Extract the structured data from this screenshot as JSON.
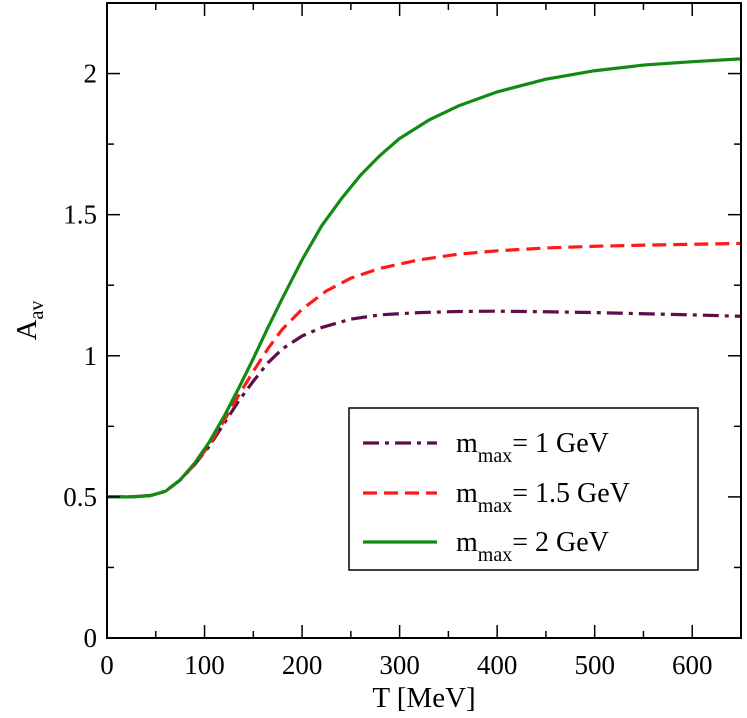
{
  "chart_data": {
    "type": "line",
    "title": "",
    "xlabel": "T [MeV]",
    "ylabel_main": "A",
    "ylabel_sub": "av",
    "xlim": [
      0,
      650
    ],
    "ylim": [
      0,
      2.25
    ],
    "x_ticks": [
      0,
      100,
      200,
      300,
      400,
      500,
      600
    ],
    "x_tick_labels": [
      "0",
      "100",
      "200",
      "300",
      "400",
      "500",
      "600"
    ],
    "y_ticks": [
      0,
      0.5,
      1,
      1.5,
      2
    ],
    "y_tick_labels": [
      "0",
      "0.5",
      "1",
      "1.5",
      "2"
    ],
    "grid": false,
    "legend_position": "lower-right",
    "series": [
      {
        "name": "m_max = 1 GeV",
        "label_main": "m",
        "label_sub": "max",
        "label_value": "= 1 GeV",
        "color": "#5c0f4a",
        "style": "dashdot",
        "points": [
          [
            0,
            0.5
          ],
          [
            25,
            0.5
          ],
          [
            45,
            0.505
          ],
          [
            60,
            0.52
          ],
          [
            75,
            0.56
          ],
          [
            90,
            0.615
          ],
          [
            105,
            0.68
          ],
          [
            120,
            0.76
          ],
          [
            135,
            0.84
          ],
          [
            150,
            0.91
          ],
          [
            165,
            0.975
          ],
          [
            180,
            1.025
          ],
          [
            200,
            1.07
          ],
          [
            220,
            1.1
          ],
          [
            250,
            1.13
          ],
          [
            280,
            1.145
          ],
          [
            320,
            1.153
          ],
          [
            360,
            1.157
          ],
          [
            400,
            1.158
          ],
          [
            450,
            1.156
          ],
          [
            500,
            1.153
          ],
          [
            550,
            1.149
          ],
          [
            600,
            1.145
          ],
          [
            650,
            1.14
          ]
        ]
      },
      {
        "name": "m_max = 1.5 GeV",
        "label_main": "m",
        "label_sub": "max",
        "label_value": "= 1.5 GeV",
        "color": "#ff1a1a",
        "style": "dashed",
        "points": [
          [
            0,
            0.5
          ],
          [
            25,
            0.5
          ],
          [
            45,
            0.505
          ],
          [
            60,
            0.52
          ],
          [
            75,
            0.56
          ],
          [
            90,
            0.615
          ],
          [
            105,
            0.685
          ],
          [
            120,
            0.77
          ],
          [
            135,
            0.86
          ],
          [
            150,
            0.945
          ],
          [
            165,
            1.025
          ],
          [
            180,
            1.095
          ],
          [
            200,
            1.165
          ],
          [
            225,
            1.23
          ],
          [
            250,
            1.275
          ],
          [
            280,
            1.31
          ],
          [
            320,
            1.34
          ],
          [
            360,
            1.36
          ],
          [
            400,
            1.372
          ],
          [
            450,
            1.382
          ],
          [
            500,
            1.388
          ],
          [
            550,
            1.392
          ],
          [
            600,
            1.395
          ],
          [
            650,
            1.398
          ]
        ]
      },
      {
        "name": "m_max = 2 GeV",
        "label_main": "m",
        "label_sub": "max",
        "label_value": "= 2 GeV",
        "color": "#138a13",
        "style": "solid",
        "points": [
          [
            0,
            0.5
          ],
          [
            25,
            0.5
          ],
          [
            45,
            0.505
          ],
          [
            60,
            0.52
          ],
          [
            75,
            0.56
          ],
          [
            90,
            0.62
          ],
          [
            105,
            0.695
          ],
          [
            120,
            0.785
          ],
          [
            135,
            0.885
          ],
          [
            150,
            0.99
          ],
          [
            165,
            1.1
          ],
          [
            180,
            1.205
          ],
          [
            200,
            1.34
          ],
          [
            220,
            1.46
          ],
          [
            240,
            1.555
          ],
          [
            260,
            1.64
          ],
          [
            280,
            1.71
          ],
          [
            300,
            1.77
          ],
          [
            330,
            1.835
          ],
          [
            360,
            1.885
          ],
          [
            400,
            1.935
          ],
          [
            450,
            1.98
          ],
          [
            500,
            2.01
          ],
          [
            550,
            2.03
          ],
          [
            600,
            2.042
          ],
          [
            650,
            2.052
          ]
        ]
      }
    ]
  }
}
